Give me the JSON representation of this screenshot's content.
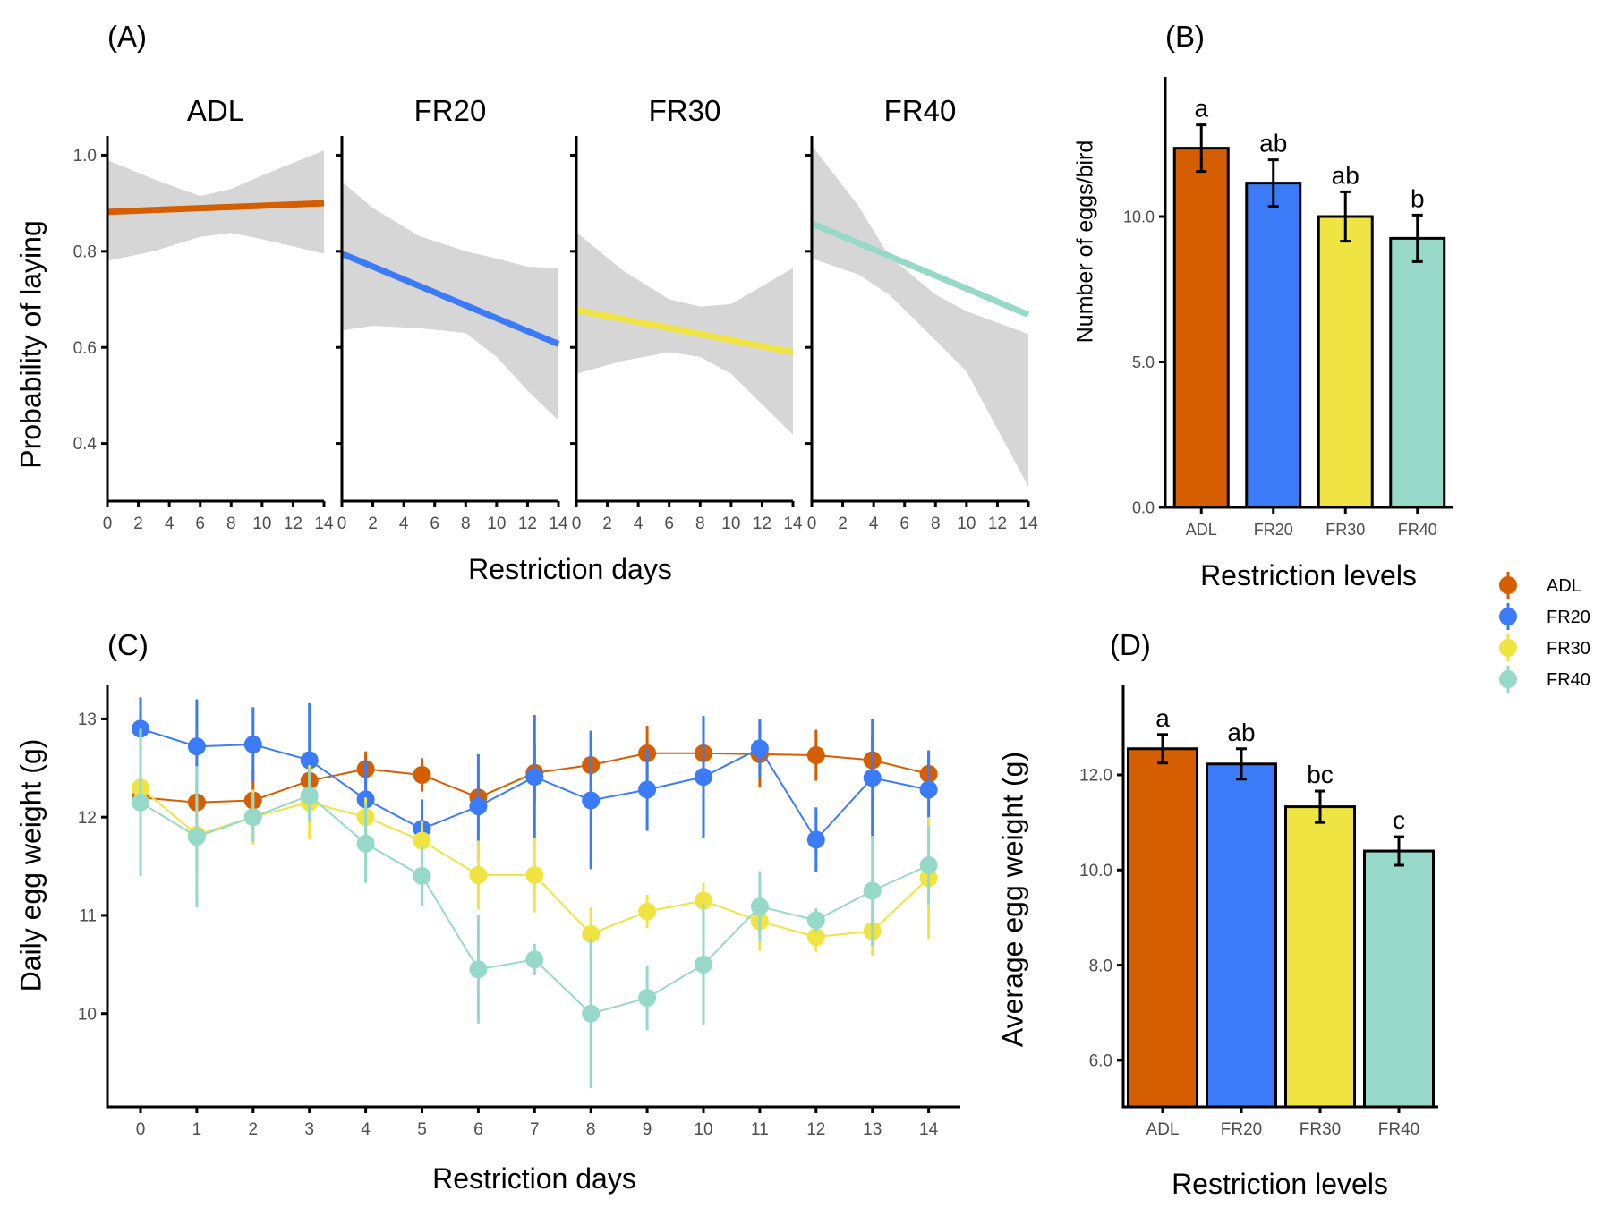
{
  "colors": {
    "ADL": "#D55E00",
    "FR20": "#3B7BF7",
    "FR30": "#F0E442",
    "FR40": "#96D9C9",
    "ribbon": "#D6D6D6"
  },
  "legend": {
    "items": [
      "ADL",
      "FR20",
      "FR30",
      "FR40"
    ]
  },
  "chart_data": [
    {
      "panel": "(A)",
      "type": "line",
      "xlabel": "Restriction days",
      "ylabel": "Probability of laying",
      "ylim": [
        0.28,
        1.04
      ],
      "yticks": [
        0.4,
        0.6,
        0.8,
        1.0
      ],
      "ytick_labels": [
        "0.4",
        "0.6",
        "0.8",
        "1.0"
      ],
      "xlim": [
        0,
        14
      ],
      "xticks": [
        0,
        2,
        4,
        6,
        8,
        10,
        12,
        14
      ],
      "facets": [
        {
          "name": "ADL",
          "start": 0.882,
          "end": 0.9,
          "ribbon": [
            [
              0,
              0.78,
              0.99
            ],
            [
              3,
              0.8,
              0.95
            ],
            [
              6,
              0.83,
              0.915
            ],
            [
              8,
              0.838,
              0.93
            ],
            [
              10,
              0.825,
              0.958
            ],
            [
              14,
              0.795,
              1.01
            ]
          ]
        },
        {
          "name": "FR20",
          "start": 0.795,
          "end": 0.607,
          "ribbon": [
            [
              0,
              0.635,
              0.945
            ],
            [
              2,
              0.645,
              0.89
            ],
            [
              5,
              0.64,
              0.832
            ],
            [
              8,
              0.63,
              0.8
            ],
            [
              10,
              0.58,
              0.785
            ],
            [
              12,
              0.51,
              0.768
            ],
            [
              14,
              0.448,
              0.765
            ]
          ]
        },
        {
          "name": "FR30",
          "start": 0.678,
          "end": 0.59,
          "ribbon": [
            [
              0,
              0.545,
              0.84
            ],
            [
              3,
              0.572,
              0.76
            ],
            [
              6,
              0.59,
              0.7
            ],
            [
              8,
              0.58,
              0.685
            ],
            [
              10,
              0.545,
              0.69
            ],
            [
              14,
              0.418,
              0.765
            ]
          ]
        },
        {
          "name": "FR40",
          "start": 0.858,
          "end": 0.668,
          "ribbon": [
            [
              0,
              0.785,
              1.02
            ],
            [
              3,
              0.752,
              0.895
            ],
            [
              5,
              0.71,
              0.79
            ],
            [
              8,
              0.615,
              0.71
            ],
            [
              10,
              0.55,
              0.675
            ],
            [
              14,
              0.31,
              0.628
            ]
          ]
        }
      ]
    },
    {
      "panel": "(B)",
      "type": "bar",
      "categories": [
        "ADL",
        "FR20",
        "FR30",
        "FR40"
      ],
      "values": [
        12.35,
        11.15,
        10.0,
        9.25
      ],
      "errors": [
        0.8,
        0.8,
        0.85,
        0.8
      ],
      "letters": [
        "a",
        "ab",
        "ab",
        "b"
      ],
      "xlabel": "Restriction levels",
      "ylabel": "Number of eggs/bird",
      "ylim": [
        0,
        14.8
      ],
      "yticks": [
        0,
        5,
        10
      ],
      "ytick_labels": [
        "0.0",
        "5.0",
        "10.0"
      ]
    },
    {
      "panel": "(C)",
      "type": "line",
      "xlabel": "Restriction days",
      "ylabel": "Daily egg weight (g)",
      "x": [
        0,
        1,
        2,
        3,
        4,
        5,
        6,
        7,
        8,
        9,
        10,
        11,
        12,
        13,
        14
      ],
      "ylim": [
        9.05,
        13.35
      ],
      "yticks": [
        10,
        11,
        12,
        13
      ],
      "ytick_labels": [
        "10",
        "11",
        "12",
        "13"
      ],
      "series": [
        {
          "name": "ADL",
          "values": [
            12.2,
            12.15,
            12.17,
            12.37,
            12.49,
            12.43,
            12.2,
            12.45,
            12.53,
            12.65,
            12.65,
            12.64,
            12.63,
            12.58,
            12.44
          ],
          "errors": [
            0.32,
            0.22,
            0.3,
            0.15,
            0.18,
            0.17,
            0.12,
            0.3,
            0.35,
            0.28,
            0.25,
            0.33,
            0.26,
            0.26,
            0.22
          ]
        },
        {
          "name": "FR20",
          "values": [
            12.9,
            12.72,
            12.74,
            12.58,
            12.18,
            11.88,
            12.11,
            12.41,
            12.17,
            12.28,
            12.41,
            12.7,
            11.77,
            12.4,
            12.28
          ],
          "errors": [
            0.32,
            0.48,
            0.38,
            0.58,
            0.4,
            0.3,
            0.53,
            0.63,
            0.7,
            0.42,
            0.62,
            0.3,
            0.33,
            0.6,
            0.4
          ]
        },
        {
          "name": "FR30",
          "values": [
            12.3,
            11.82,
            12.0,
            12.15,
            12.0,
            11.76,
            11.41,
            11.41,
            10.81,
            11.04,
            11.15,
            10.94,
            10.78,
            10.84,
            11.38
          ],
          "errors": [
            0.32,
            0.38,
            0.28,
            0.38,
            0.2,
            0.2,
            0.35,
            0.38,
            0.27,
            0.17,
            0.18,
            0.3,
            0.15,
            0.25,
            0.62
          ]
        },
        {
          "name": "FR40",
          "values": [
            12.15,
            11.8,
            12.0,
            12.22,
            11.73,
            11.4,
            10.45,
            10.55,
            10.0,
            10.16,
            10.5,
            11.09,
            10.95,
            11.25,
            11.51
          ],
          "errors": [
            0.75,
            0.72,
            0.25,
            0.27,
            0.4,
            0.3,
            0.55,
            0.16,
            0.76,
            0.33,
            0.62,
            0.36,
            0.12,
            0.56,
            0.4
          ]
        }
      ]
    },
    {
      "panel": "(D)",
      "type": "bar",
      "categories": [
        "ADL",
        "FR20",
        "FR30",
        "FR40"
      ],
      "values": [
        12.55,
        12.23,
        11.33,
        10.4
      ],
      "errors": [
        0.3,
        0.32,
        0.33,
        0.3
      ],
      "letters": [
        "a",
        "ab",
        "bc",
        "c"
      ],
      "xlabel": "Restriction levels",
      "ylabel": "Average egg weight (g)",
      "ylim": [
        5.02,
        13.9
      ],
      "yticks": [
        6,
        8,
        10,
        12
      ],
      "ytick_labels": [
        "6.0",
        "8.0",
        "10.0",
        "12.0"
      ]
    }
  ]
}
